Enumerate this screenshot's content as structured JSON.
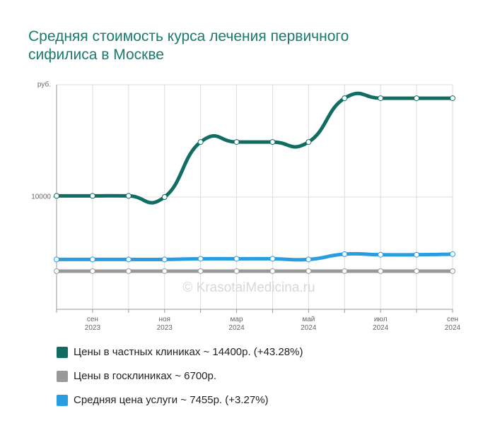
{
  "chart_data": {
    "type": "line",
    "title": "Средняя стоимость курса лечения первичного сифилиса в Москве",
    "y_label": "руб.",
    "watermark": "© KrasotaiMedicina.ru",
    "categories": [
      null,
      "сен 2023",
      null,
      "ноя 2023",
      null,
      "мар 2024",
      null,
      "май 2024",
      null,
      "июл 2024",
      null,
      "сен 2024"
    ],
    "ylim": [
      5000,
      15000
    ],
    "yticks": [
      10000
    ],
    "grid": true,
    "series": [
      {
        "name": "Цены в частных клиниках ~ 14400р. (+43.28%)",
        "color": "#116d62",
        "values": [
          10050,
          10050,
          10050,
          10000,
          12450,
          12450,
          12450,
          12450,
          14400,
          14400,
          14400,
          14400
        ]
      },
      {
        "name": "Цены в госклиниках ~ 6700р.",
        "color": "#999999",
        "values": [
          6700,
          6700,
          6700,
          6700,
          6700,
          6700,
          6700,
          6700,
          6700,
          6700,
          6700,
          6700
        ]
      },
      {
        "name": "Средняя цена услуги ~ 7455р. (+3.27%)",
        "color": "#2a9de0",
        "values": [
          7220,
          7220,
          7220,
          7220,
          7250,
          7250,
          7250,
          7220,
          7455,
          7430,
          7430,
          7455
        ]
      }
    ]
  }
}
